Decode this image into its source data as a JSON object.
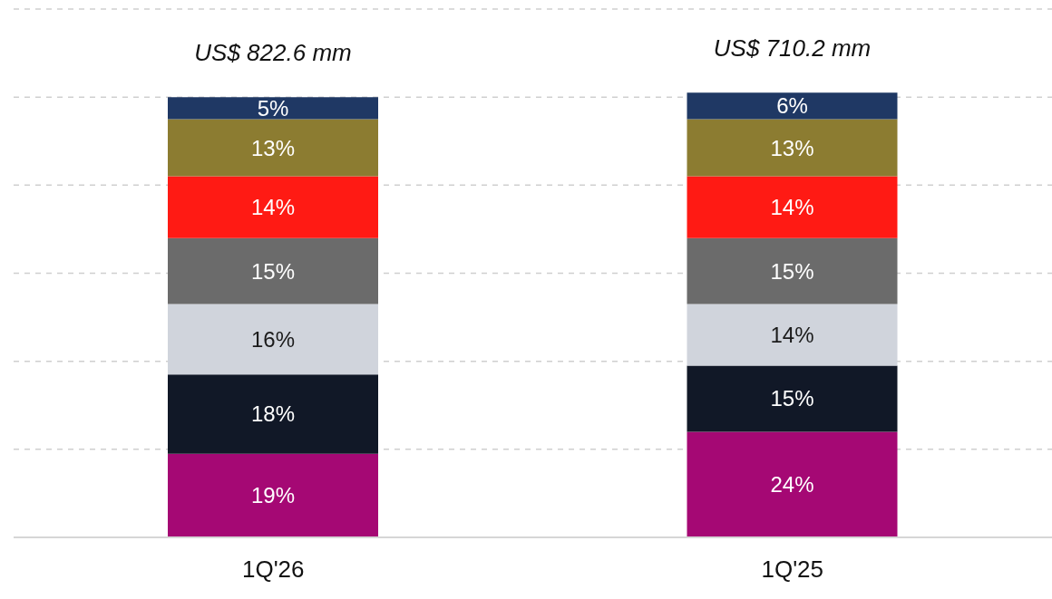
{
  "chart_data": {
    "type": "bar",
    "stacked": true,
    "categories": [
      "1Q'26",
      "1Q'25"
    ],
    "series": [
      {
        "color": "#a50874",
        "values": [
          19,
          24
        ],
        "value_labels": [
          "19%",
          "24%"
        ]
      },
      {
        "color": "#111827",
        "values": [
          18,
          15
        ],
        "value_labels": [
          "18%",
          "15%"
        ]
      },
      {
        "color": "#d0d4dc",
        "values": [
          16,
          14
        ],
        "value_labels": [
          "16%",
          "14%"
        ]
      },
      {
        "color": "#6b6b6b",
        "values": [
          15,
          15
        ],
        "value_labels": [
          "15%",
          "15%"
        ]
      },
      {
        "color": "#ff1a14",
        "values": [
          14,
          14
        ],
        "value_labels": [
          "14%",
          "14%"
        ]
      },
      {
        "color": "#8c7c31",
        "values": [
          13,
          13
        ],
        "value_labels": [
          "13%",
          "13%"
        ]
      },
      {
        "color": "#1f3864",
        "values": [
          5,
          6
        ],
        "value_labels": [
          "5%",
          "6%"
        ]
      }
    ],
    "totals": [
      "US$ 822.6 mm",
      "US$ 710.2 mm"
    ],
    "ylim": [
      0,
      120
    ],
    "tick_labels": "x",
    "grid": "y"
  }
}
